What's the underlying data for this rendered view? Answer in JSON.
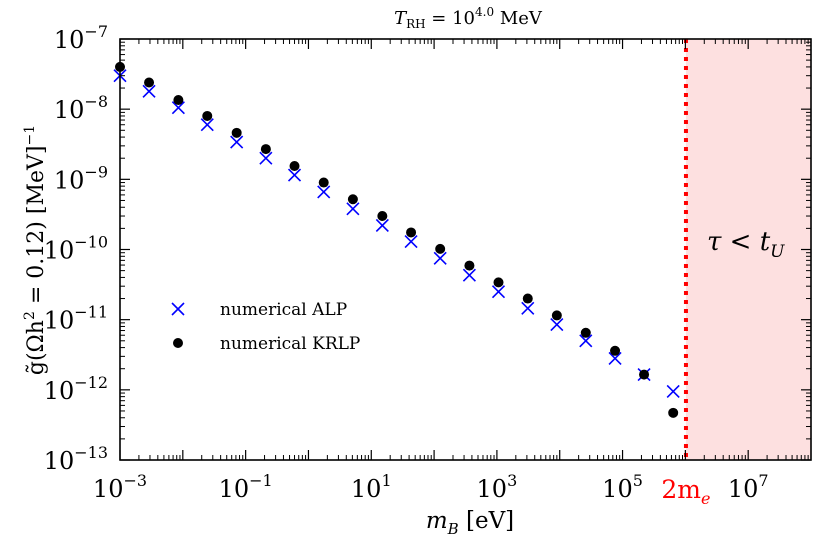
{
  "chart_data": {
    "type": "scatter",
    "title": {
      "base": "T",
      "sub": "RH",
      "eq": " = 10",
      "sup": "4.0",
      "unit": " MeV"
    },
    "xlabel": {
      "base": "m",
      "sub": "B",
      "rest": " [eV]"
    },
    "ylabel": {
      "pre": "g̃(Ωh",
      "sup1": "2",
      "mid": " = 0.12) [MeV]",
      "sup2": "−1"
    },
    "x_scale": "log",
    "y_scale": "log",
    "xlim": [
      0.001,
      100000000
    ],
    "ylim": [
      1e-13,
      1e-07
    ],
    "x_ticks": [
      {
        "value": 0.001,
        "label": "10",
        "exp": "−3"
      },
      {
        "value": 0.1,
        "label": "10",
        "exp": "−1"
      },
      {
        "value": 10,
        "label": "10",
        "exp": "1"
      },
      {
        "value": 1000,
        "label": "10",
        "exp": "3"
      },
      {
        "value": 100000,
        "label": "10",
        "exp": "5"
      },
      {
        "value": 10000000,
        "label": "10",
        "exp": "7"
      }
    ],
    "y_ticks": [
      {
        "value": 1e-13,
        "label": "10",
        "exp": "−13"
      },
      {
        "value": 1e-12,
        "label": "10",
        "exp": "−12"
      },
      {
        "value": 1e-11,
        "label": "10",
        "exp": "−11"
      },
      {
        "value": 1e-10,
        "label": "10",
        "exp": "−10"
      },
      {
        "value": 1e-09,
        "label": "10",
        "exp": "−9"
      },
      {
        "value": 1e-08,
        "label": "10",
        "exp": "−8"
      },
      {
        "value": 1e-07,
        "label": "10",
        "exp": "−7"
      }
    ],
    "series": [
      {
        "name": "numerical ALP",
        "marker": "x",
        "color": "#0000ff",
        "x": [
          0.001,
          0.0029,
          0.0085,
          0.0245,
          0.072,
          0.21,
          0.6,
          1.75,
          5.1,
          15,
          43,
          125,
          365,
          1060,
          3100,
          9000,
          26000,
          76000,
          220000,
          640000
        ],
        "y": [
          3e-08,
          1.8e-08,
          1.05e-08,
          6e-09,
          3.4e-09,
          2e-09,
          1.15e-09,
          6.6e-10,
          3.8e-10,
          2.2e-10,
          1.3e-10,
          7.5e-11,
          4.3e-11,
          2.5e-11,
          1.45e-11,
          8.5e-12,
          5e-12,
          2.8e-12,
          1.65e-12,
          9.5e-13
        ]
      },
      {
        "name": "numerical KRLP",
        "marker": "o",
        "color": "#000000",
        "x": [
          0.001,
          0.0029,
          0.0085,
          0.0245,
          0.072,
          0.21,
          0.6,
          1.75,
          5.1,
          15,
          43,
          125,
          365,
          1060,
          3100,
          9000,
          26000,
          76000,
          220000,
          640000
        ],
        "y": [
          4e-08,
          2.4e-08,
          1.35e-08,
          8e-09,
          4.6e-09,
          2.7e-09,
          1.55e-09,
          9e-10,
          5.2e-10,
          3e-10,
          1.75e-10,
          1.02e-10,
          5.9e-11,
          3.4e-11,
          2e-11,
          1.15e-11,
          6.5e-12,
          3.6e-12,
          1.65e-12,
          4.7e-13
        ]
      }
    ],
    "vline": {
      "x": 1022000,
      "color": "#ff0000",
      "style": "dotted",
      "label_num": "2m",
      "label_sub": "e",
      "label_color": "#ff0000"
    },
    "shaded_region": {
      "x_from": 1022000,
      "x_to": 100000000,
      "color": "#fde0e0",
      "label_base": "τ < t",
      "label_sub": "U"
    },
    "legend": {
      "position": "center-left"
    },
    "grid": false
  }
}
